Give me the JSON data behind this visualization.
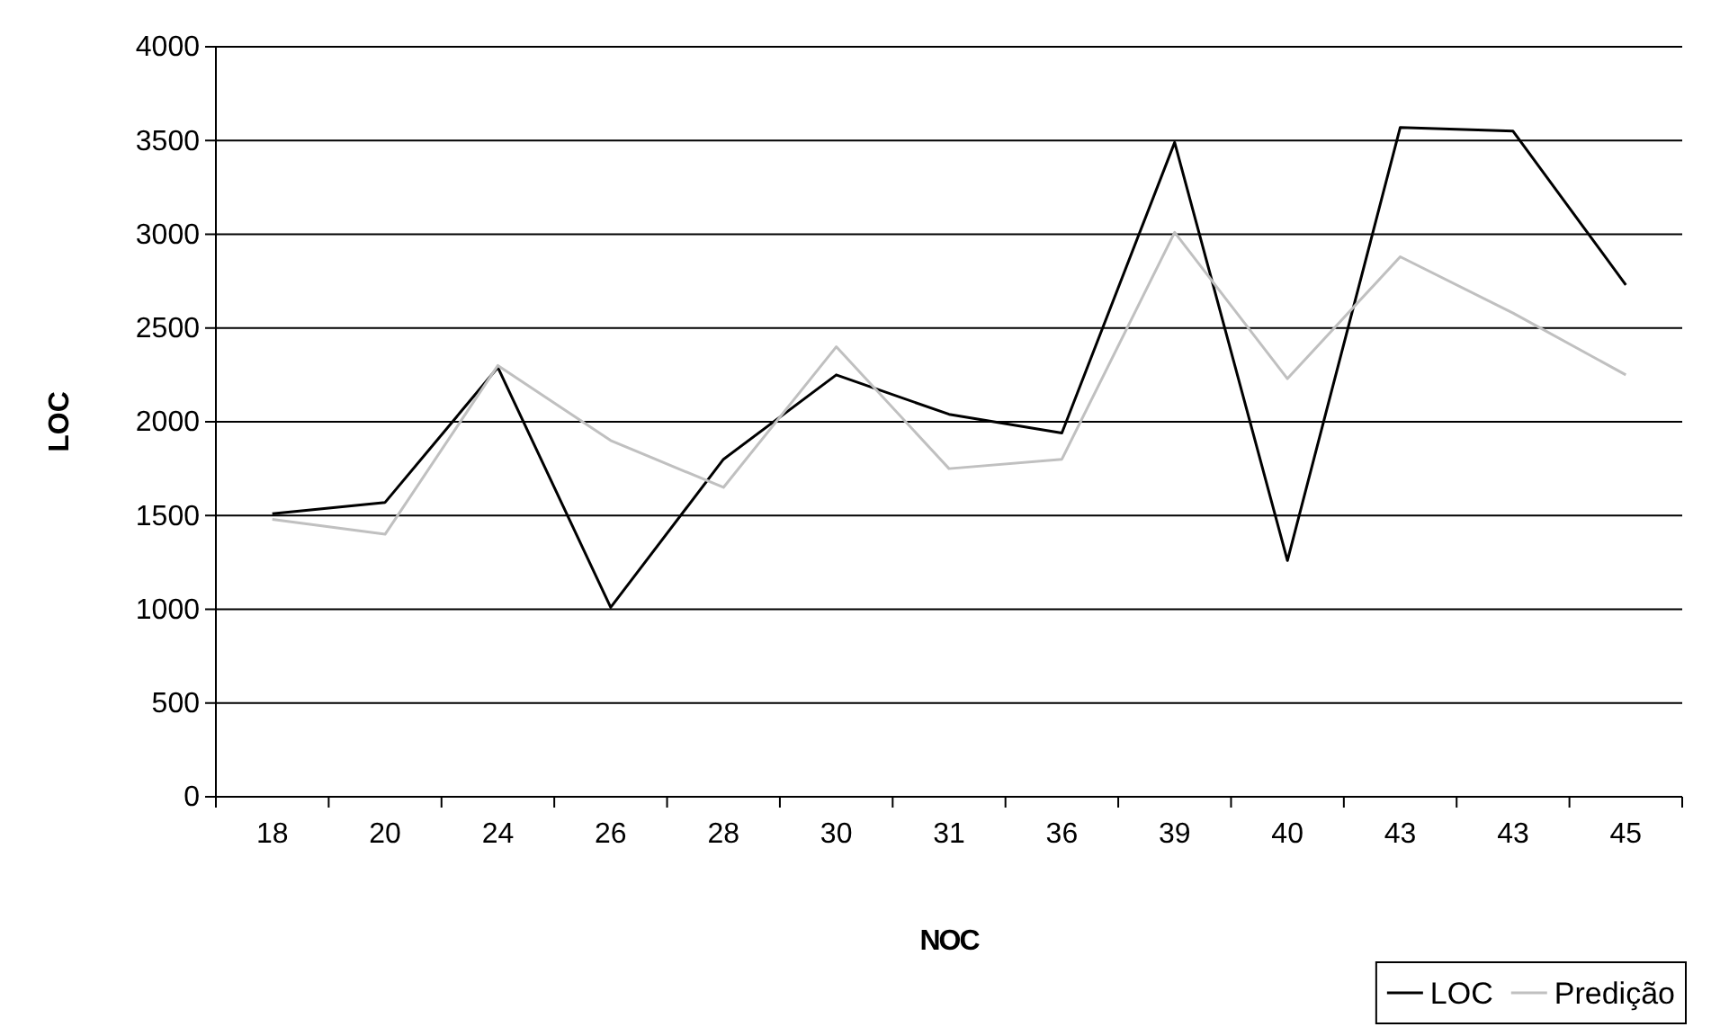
{
  "chart_data": {
    "type": "line",
    "xlabel": "NOC",
    "ylabel": "LOC",
    "categories": [
      "18",
      "20",
      "24",
      "26",
      "28",
      "30",
      "31",
      "36",
      "39",
      "40",
      "43",
      "43",
      "45"
    ],
    "series": [
      {
        "name": "LOC",
        "color": "#000000",
        "values": [
          1510,
          1570,
          2290,
          1010,
          1800,
          2250,
          2040,
          1940,
          3490,
          1260,
          3570,
          3550,
          2730
        ]
      },
      {
        "name": "Predição",
        "color": "#c0c0c0",
        "values": [
          1480,
          1400,
          2300,
          1900,
          1650,
          2400,
          1750,
          1800,
          3010,
          2230,
          2880,
          2580,
          2250
        ]
      }
    ],
    "ylim": [
      0,
      4000
    ],
    "yticks": [
      0,
      500,
      1000,
      1500,
      2000,
      2500,
      3000,
      3500,
      4000
    ],
    "grid": "y",
    "legend": "bottom right",
    "marker": "none",
    "line_style": "solid"
  }
}
